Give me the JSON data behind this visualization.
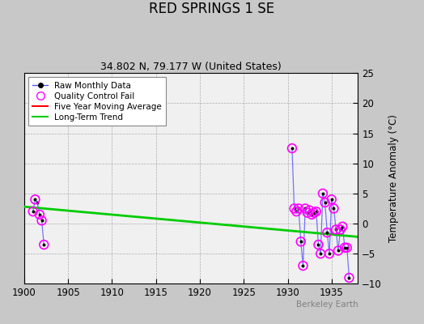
{
  "title": "RED SPRINGS 1 SE",
  "subtitle": "34.802 N, 79.177 W (United States)",
  "ylabel": "Temperature Anomaly (°C)",
  "watermark": "Berkeley Earth",
  "xlim": [
    1900,
    1938
  ],
  "ylim": [
    -10,
    25
  ],
  "yticks": [
    -10,
    -5,
    0,
    5,
    10,
    15,
    20,
    25
  ],
  "xticks": [
    1900,
    1905,
    1910,
    1915,
    1920,
    1925,
    1930,
    1935
  ],
  "bg_color": "#c8c8c8",
  "plot_bg_color": "#f0f0f0",
  "segments": [
    {
      "x": [
        1901.0,
        1901.25,
        1901.5,
        1901.75,
        1902.0,
        1902.25
      ],
      "y": [
        2.0,
        4.0,
        3.5,
        1.5,
        0.5,
        -3.5
      ]
    },
    {
      "x": [
        1930.5,
        1930.75,
        1931.0,
        1931.25,
        1931.5,
        1931.75,
        1932.0,
        1932.25,
        1932.5,
        1932.75,
        1933.0,
        1933.25,
        1933.5,
        1933.75,
        1934.0,
        1934.25,
        1934.5,
        1934.75,
        1935.0,
        1935.25,
        1935.5,
        1935.75,
        1936.0,
        1936.25,
        1936.5,
        1936.75,
        1937.0
      ],
      "y": [
        12.5,
        2.5,
        2.0,
        2.5,
        -3.0,
        -7.0,
        2.5,
        1.8,
        2.2,
        1.5,
        1.8,
        2.0,
        -3.5,
        -5.0,
        5.0,
        3.5,
        -1.5,
        -5.0,
        4.0,
        2.5,
        -1.0,
        -4.5,
        -1.0,
        -0.5,
        -4.0,
        -4.0,
        -9.0
      ]
    }
  ],
  "qc_fail_x": [
    1901.0,
    1901.25,
    1901.75,
    1902.0,
    1902.25,
    1930.5,
    1930.75,
    1931.0,
    1931.25,
    1931.5,
    1931.75,
    1932.0,
    1932.25,
    1932.5,
    1932.75,
    1933.0,
    1933.25,
    1933.5,
    1933.75,
    1934.0,
    1934.25,
    1934.5,
    1934.75,
    1935.0,
    1935.25,
    1935.5,
    1935.75,
    1936.0,
    1936.25,
    1936.5,
    1936.75,
    1937.0
  ],
  "qc_fail_y": [
    2.0,
    4.0,
    1.5,
    0.5,
    -3.5,
    12.5,
    2.5,
    2.0,
    2.5,
    -3.0,
    -7.0,
    2.5,
    1.8,
    2.2,
    1.5,
    1.8,
    2.0,
    -3.5,
    -5.0,
    5.0,
    3.5,
    -1.5,
    -5.0,
    4.0,
    2.5,
    -1.0,
    -4.5,
    -1.0,
    -0.5,
    -4.0,
    -4.0,
    -9.0
  ],
  "trend_x": [
    1900,
    1938
  ],
  "trend_y": [
    2.8,
    -2.2
  ],
  "line_color": "#5555ff",
  "marker_color": "black",
  "qc_color": "magenta",
  "trend_color": "#00cc00",
  "mavg_color": "red"
}
